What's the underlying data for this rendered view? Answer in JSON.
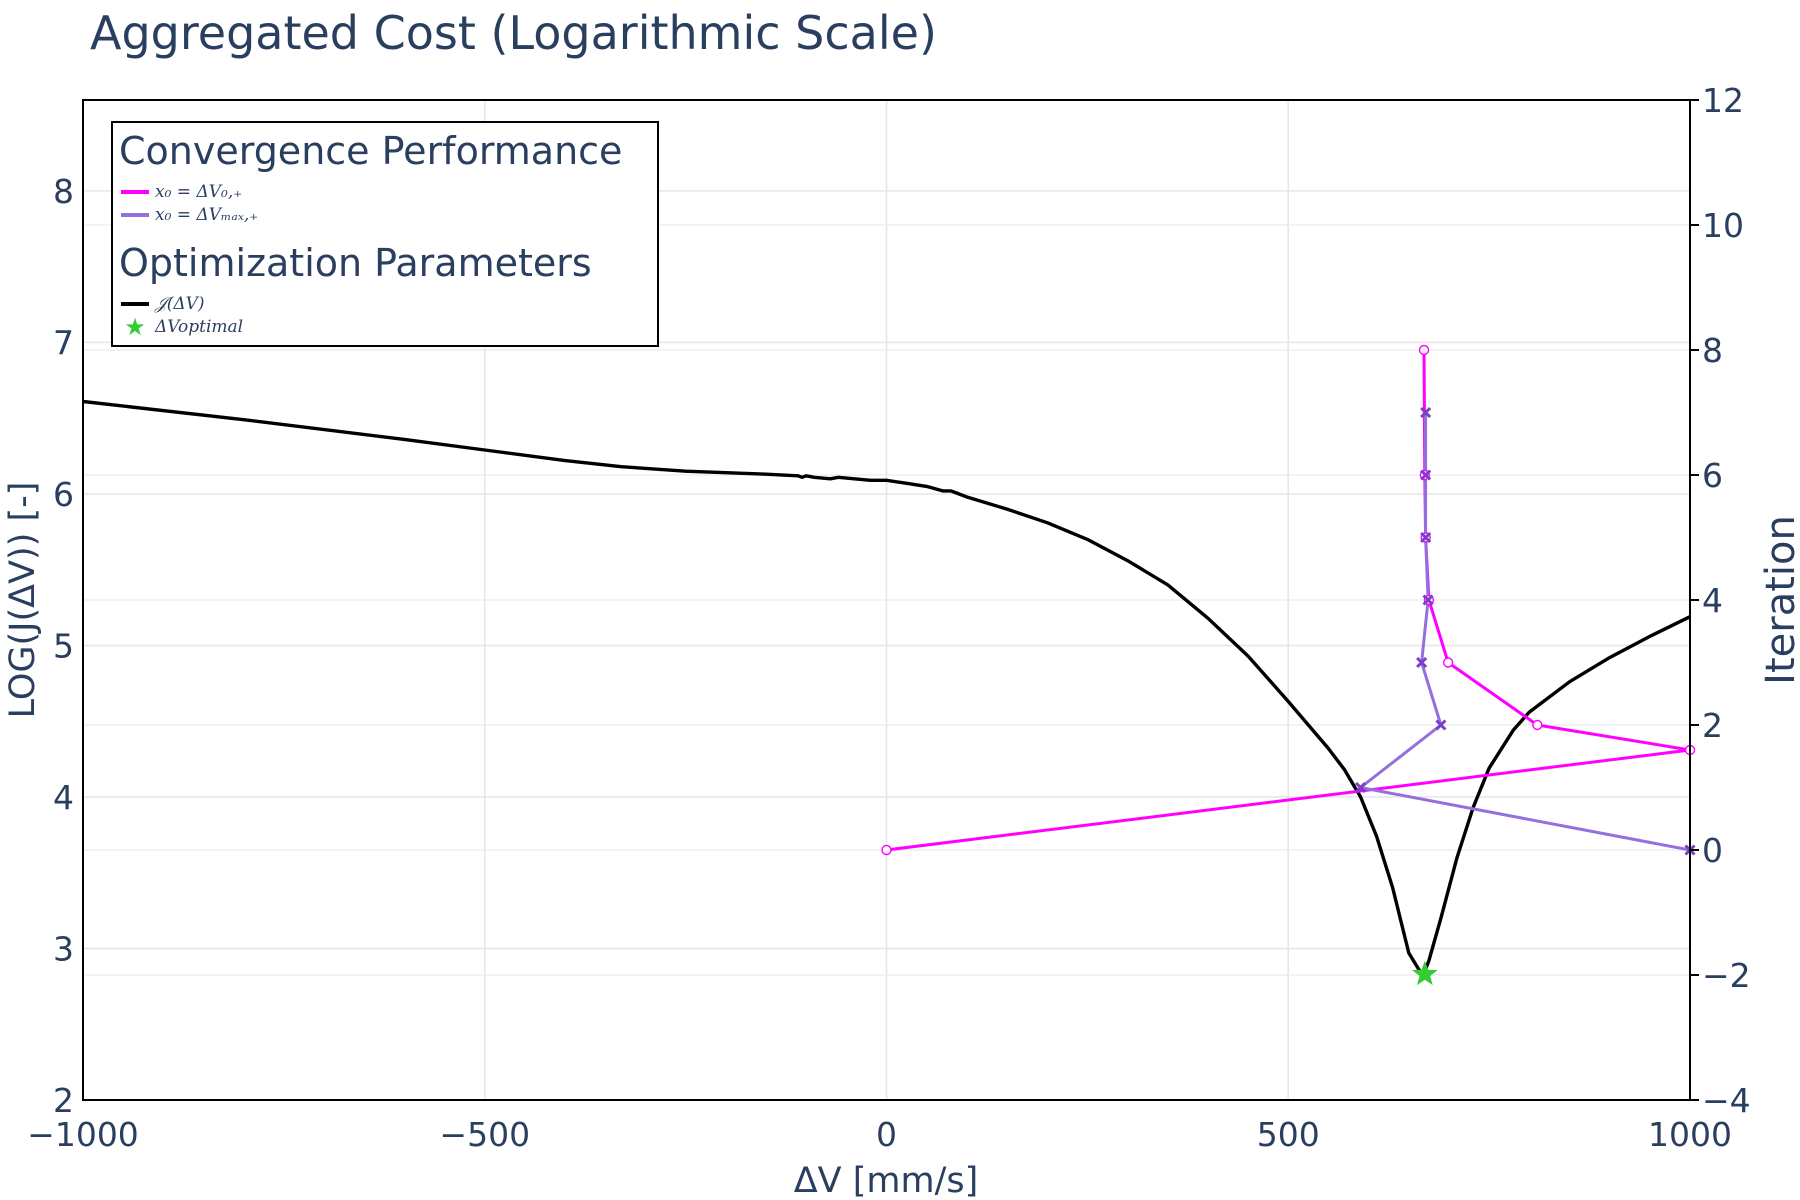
{
  "chart_data": {
    "type": "line",
    "title": "Aggregated Cost (Logarithmic Scale)",
    "xlabel": "ΔV [mm/s]",
    "ylabel": "LOG(J(ΔV)) [-]",
    "y2label": "Iteration",
    "xlim": [
      -1000,
      1000
    ],
    "ylim": [
      2,
      8.6
    ],
    "y2lim": [
      -4,
      12
    ],
    "xticks": [
      -1000,
      -500,
      0,
      500,
      1000
    ],
    "xtick_labels": [
      "−1000",
      "−500",
      "0",
      "500",
      "1000"
    ],
    "yticks": [
      2,
      3,
      4,
      5,
      6,
      7,
      8
    ],
    "ytick_labels": [
      "2",
      "3",
      "4",
      "5",
      "6",
      "7",
      "8"
    ],
    "y2ticks": [
      -4,
      -2,
      0,
      2,
      4,
      6,
      8,
      10,
      12
    ],
    "y2tick_labels": [
      "−4",
      "−2",
      "0",
      "2",
      "4",
      "6",
      "8",
      "10",
      "12"
    ],
    "grid": true,
    "legend_position": "top-left",
    "legend": {
      "groups": [
        {
          "title": "Convergence Performance",
          "items": [
            "x₀ = ΔV₀,₊",
            "x₀ = ΔVₘₐₓ,₊"
          ]
        },
        {
          "title": "Optimization Parameters",
          "items": [
            "𝒥(ΔV)",
            "ΔVoptimal"
          ]
        }
      ]
    },
    "series": [
      {
        "name": "𝒥(ΔV)",
        "axis": "y",
        "color": "#000000",
        "marker": "none",
        "x": [
          -1000,
          -800,
          -600,
          -500,
          -400,
          -330,
          -250,
          -150,
          -110,
          -105,
          -100,
          -90,
          -70,
          -60,
          -40,
          -20,
          0,
          25,
          50,
          70,
          80,
          90,
          100,
          150,
          200,
          250,
          300,
          350,
          400,
          450,
          500,
          550,
          570,
          590,
          610,
          630,
          650,
          665,
          670,
          675,
          690,
          710,
          730,
          750,
          780,
          800,
          850,
          900,
          950,
          1000
        ],
        "y": [
          6.61,
          6.49,
          6.36,
          6.29,
          6.22,
          6.18,
          6.15,
          6.13,
          6.12,
          6.11,
          6.12,
          6.11,
          6.1,
          6.11,
          6.1,
          6.09,
          6.09,
          6.07,
          6.05,
          6.02,
          6.02,
          6.0,
          5.98,
          5.9,
          5.81,
          5.7,
          5.56,
          5.4,
          5.18,
          4.93,
          4.63,
          4.32,
          4.18,
          4.0,
          3.74,
          3.4,
          2.97,
          2.84,
          2.85,
          2.92,
          3.2,
          3.6,
          3.93,
          4.19,
          4.44,
          4.56,
          4.76,
          4.92,
          5.06,
          5.19
        ]
      },
      {
        "name": "x₀ = ΔV₀,₊",
        "axis": "y2",
        "color": "#ff00ff",
        "marker": "circle-open",
        "x": [
          0,
          1000,
          810,
          699,
          675,
          671,
          670,
          669
        ],
        "y": [
          0,
          1.6,
          2,
          3,
          4,
          5,
          6,
          8
        ]
      },
      {
        "name": "x₀ = ΔVₘₐₓ,₊",
        "axis": "y2",
        "color": "#9370db",
        "marker": "x",
        "x": [
          1000,
          590,
          690,
          666,
          674,
          671,
          671,
          671
        ],
        "y": [
          0,
          1,
          2,
          3,
          4,
          5,
          6,
          7
        ]
      },
      {
        "name": "ΔVoptimal",
        "axis": "y",
        "color": "#33cc33",
        "marker": "star",
        "x": [
          670
        ],
        "y": [
          2.83
        ]
      }
    ]
  }
}
